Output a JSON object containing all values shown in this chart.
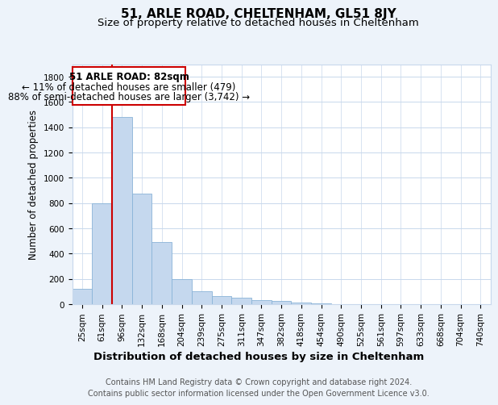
{
  "title": "51, ARLE ROAD, CHELTENHAM, GL51 8JY",
  "subtitle": "Size of property relative to detached houses in Cheltenham",
  "xlabel": "Distribution of detached houses by size in Cheltenham",
  "ylabel": "Number of detached properties",
  "categories": [
    "25sqm",
    "61sqm",
    "96sqm",
    "132sqm",
    "168sqm",
    "204sqm",
    "239sqm",
    "275sqm",
    "311sqm",
    "347sqm",
    "382sqm",
    "418sqm",
    "454sqm",
    "490sqm",
    "525sqm",
    "561sqm",
    "597sqm",
    "633sqm",
    "668sqm",
    "704sqm",
    "740sqm"
  ],
  "values": [
    120,
    800,
    1480,
    875,
    490,
    200,
    105,
    65,
    50,
    35,
    25,
    15,
    8,
    0,
    0,
    0,
    0,
    0,
    0,
    0,
    0
  ],
  "bar_color": "#c5d8ee",
  "bar_edgecolor": "#8ab4d8",
  "annotation_line_color": "#cc0000",
  "annotation_box_color": "#ffffff",
  "annotation_box_edgecolor": "#cc0000",
  "annotation_box_text_line1": "51 ARLE ROAD: 82sqm",
  "annotation_box_text_line2": "← 11% of detached houses are smaller (479)",
  "annotation_box_text_line3": "88% of semi-detached houses are larger (3,742) →",
  "grid_color": "#c8d8ec",
  "plot_bg_color": "#ffffff",
  "fig_bg_color": "#edf3fa",
  "yticks": [
    0,
    200,
    400,
    600,
    800,
    1000,
    1200,
    1400,
    1600,
    1800
  ],
  "ylim": [
    0,
    1900
  ],
  "footer": "Contains HM Land Registry data © Crown copyright and database right 2024.\nContains public sector information licensed under the Open Government Licence v3.0.",
  "title_fontsize": 11,
  "subtitle_fontsize": 9.5,
  "xlabel_fontsize": 9.5,
  "ylabel_fontsize": 8.5,
  "tick_fontsize": 7.5,
  "annotation_fontsize": 8.5,
  "footer_fontsize": 7
}
